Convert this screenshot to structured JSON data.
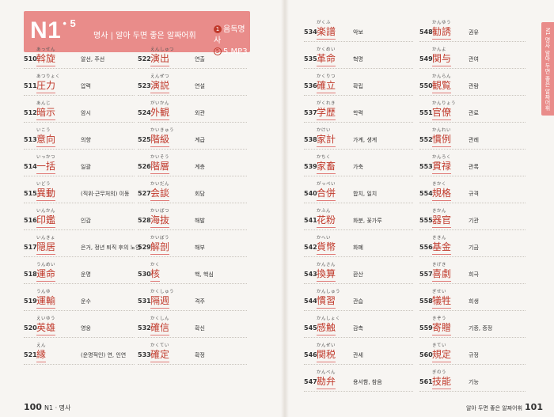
{
  "header": {
    "badge_main": "N1",
    "badge_sub": "• 5",
    "category": "명사 | 알아 두면 좋은 알짜어휘",
    "ref1": "음독명사",
    "ref2": "5.MP3",
    "ref1_icon": "1",
    "ref2_icon": "5"
  },
  "side_tab": "N1 명사  알아 두면 좋은 알짜어휘",
  "footer": {
    "left_num": "100",
    "left_label": "N1 · 명사",
    "right_label": "알아 두면 좋은 알짜어휘",
    "right_num": "101"
  },
  "entries": [
    {
      "num": "510",
      "reading": "あっせん",
      "kanji": "斡旋",
      "meaning": "알선, 주선"
    },
    {
      "num": "511",
      "reading": "あつりょく",
      "kanji": "圧力",
      "meaning": "압력"
    },
    {
      "num": "512",
      "reading": "あんじ",
      "kanji": "暗示",
      "meaning": "암시"
    },
    {
      "num": "513",
      "reading": "いこう",
      "kanji": "意向",
      "meaning": "의향"
    },
    {
      "num": "514",
      "reading": "いっかつ",
      "kanji": "一括",
      "meaning": "일괄"
    },
    {
      "num": "515",
      "reading": "いどう",
      "kanji": "異動",
      "meaning": "(직위·근무처의) 이동"
    },
    {
      "num": "516",
      "reading": "いんかん",
      "kanji": "印鑑",
      "meaning": "인감"
    },
    {
      "num": "517",
      "reading": "いんきょ",
      "kanji": "隠居",
      "meaning": "은거, 정년 퇴직 후의 노인"
    },
    {
      "num": "518",
      "reading": "うんめい",
      "kanji": "運命",
      "meaning": "운명"
    },
    {
      "num": "519",
      "reading": "うんゆ",
      "kanji": "運輸",
      "meaning": "운수"
    },
    {
      "num": "520",
      "reading": "えいゆう",
      "kanji": "英雄",
      "meaning": "영웅"
    },
    {
      "num": "521",
      "reading": "えん",
      "kanji": "縁",
      "meaning": "(운명적인) 연, 인연"
    },
    {
      "num": "522",
      "reading": "えんしゅつ",
      "kanji": "演出",
      "meaning": "연출"
    },
    {
      "num": "523",
      "reading": "えんぜつ",
      "kanji": "演説",
      "meaning": "연설"
    },
    {
      "num": "524",
      "reading": "がいかん",
      "kanji": "外観",
      "meaning": "외관"
    },
    {
      "num": "525",
      "reading": "かいきゅう",
      "kanji": "階級",
      "meaning": "계급"
    },
    {
      "num": "526",
      "reading": "かいそう",
      "kanji": "階層",
      "meaning": "계층"
    },
    {
      "num": "527",
      "reading": "かいだん",
      "kanji": "会談",
      "meaning": "회담"
    },
    {
      "num": "528",
      "reading": "かいばつ",
      "kanji": "海抜",
      "meaning": "해발"
    },
    {
      "num": "529",
      "reading": "かいぼう",
      "kanji": "解剖",
      "meaning": "해부"
    },
    {
      "num": "530",
      "reading": "かく",
      "kanji": "核",
      "meaning": "핵, 핵심"
    },
    {
      "num": "531",
      "reading": "かくしゅう",
      "kanji": "隔週",
      "meaning": "격주"
    },
    {
      "num": "532",
      "reading": "かくしん",
      "kanji": "確信",
      "meaning": "확신"
    },
    {
      "num": "533",
      "reading": "かくてい",
      "kanji": "確定",
      "meaning": "확정"
    },
    {
      "num": "534",
      "reading": "がくふ",
      "kanji": "楽譜",
      "meaning": "악보"
    },
    {
      "num": "535",
      "reading": "かくめい",
      "kanji": "革命",
      "meaning": "혁명"
    },
    {
      "num": "536",
      "reading": "かくりつ",
      "kanji": "確立",
      "meaning": "확립"
    },
    {
      "num": "537",
      "reading": "がくれき",
      "kanji": "学歴",
      "meaning": "학력"
    },
    {
      "num": "538",
      "reading": "かけい",
      "kanji": "家計",
      "meaning": "가계, 생계"
    },
    {
      "num": "539",
      "reading": "かちく",
      "kanji": "家畜",
      "meaning": "가축"
    },
    {
      "num": "540",
      "reading": "がっぺい",
      "kanji": "合併",
      "meaning": "합치, 일치"
    },
    {
      "num": "541",
      "reading": "かふん",
      "kanji": "花粉",
      "meaning": "화분, 꽃가루"
    },
    {
      "num": "542",
      "reading": "かへい",
      "kanji": "貨幣",
      "meaning": "화폐"
    },
    {
      "num": "543",
      "reading": "かんさん",
      "kanji": "換算",
      "meaning": "환산"
    },
    {
      "num": "544",
      "reading": "かんしゅう",
      "kanji": "慣習",
      "meaning": "관습"
    },
    {
      "num": "545",
      "reading": "かんしょく",
      "kanji": "感触",
      "meaning": "감촉"
    },
    {
      "num": "546",
      "reading": "かんぜい",
      "kanji": "関税",
      "meaning": "관세"
    },
    {
      "num": "547",
      "reading": "かんべん",
      "kanji": "勘弁",
      "meaning": "용서함, 참음"
    },
    {
      "num": "548",
      "reading": "かんゆう",
      "kanji": "勧誘",
      "meaning": "권유"
    },
    {
      "num": "549",
      "reading": "かんよ",
      "kanji": "関与",
      "meaning": "관여"
    },
    {
      "num": "550",
      "reading": "かんらん",
      "kanji": "観覧",
      "meaning": "관람"
    },
    {
      "num": "551",
      "reading": "かんりょう",
      "kanji": "官僚",
      "meaning": "관료"
    },
    {
      "num": "552",
      "reading": "かんれい",
      "kanji": "慣例",
      "meaning": "관례"
    },
    {
      "num": "553",
      "reading": "かんろく",
      "kanji": "貫禄",
      "meaning": "관록"
    },
    {
      "num": "554",
      "reading": "きかく",
      "kanji": "規格",
      "meaning": "규격"
    },
    {
      "num": "555",
      "reading": "きかん",
      "kanji": "器官",
      "meaning": "기관"
    },
    {
      "num": "556",
      "reading": "ききん",
      "kanji": "基金",
      "meaning": "기금"
    },
    {
      "num": "557",
      "reading": "きげき",
      "kanji": "喜劇",
      "meaning": "희극"
    },
    {
      "num": "558",
      "reading": "ぎせい",
      "kanji": "犠牲",
      "meaning": "희생"
    },
    {
      "num": "559",
      "reading": "きぞう",
      "kanji": "寄贈",
      "meaning": "기증, 증정"
    },
    {
      "num": "560",
      "reading": "きてい",
      "kanji": "規定",
      "meaning": "규정"
    },
    {
      "num": "561",
      "reading": "ぎのう",
      "kanji": "技能",
      "meaning": "기능"
    }
  ]
}
